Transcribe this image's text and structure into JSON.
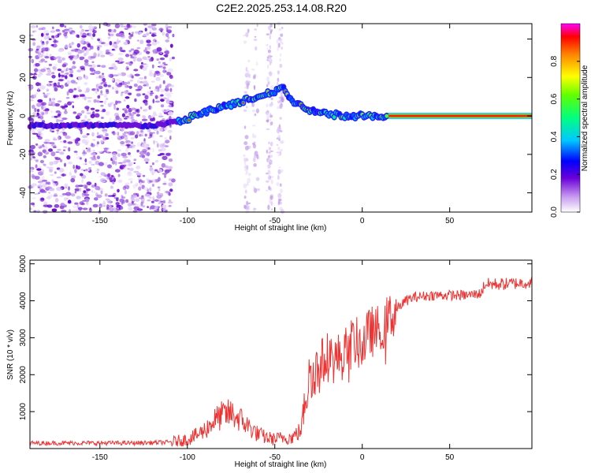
{
  "figure_title": "C2E2.2025.253.14.08.R20",
  "chart_data": [
    {
      "type": "heatmap",
      "name": "spectrogram",
      "title": "C2E2.2025.253.14.08.R20",
      "xlabel": "Height of straight line (km)",
      "ylabel": "Frequency (Hz)",
      "xlim": [
        -190,
        97
      ],
      "ylim": [
        -50,
        48
      ],
      "xticks": [
        -150,
        -100,
        -50,
        0,
        50
      ],
      "yticks": [
        -40,
        -20,
        0,
        20,
        40
      ],
      "colorbar": {
        "label": "Normalized spectral amplitude",
        "range": [
          0,
          1
        ],
        "ticks": [
          "0.0",
          "0.2",
          "0.4",
          "0.6",
          "0.8"
        ]
      },
      "ridge": {
        "x": [
          -190,
          -150,
          -120,
          -105,
          -90,
          -75,
          -60,
          -50,
          -45,
          -40,
          -30,
          -20,
          -10,
          0,
          15,
          97
        ],
        "y": [
          -5,
          -5,
          -5,
          -3,
          2,
          6,
          10,
          13,
          15,
          8,
          3,
          1,
          0,
          0,
          0,
          0
        ]
      }
    },
    {
      "type": "line",
      "name": "snr",
      "xlabel": "Height of straight line (km)",
      "ylabel": "SNR (10 * v/v)",
      "xlim": [
        -190,
        97
      ],
      "ylim": [
        0,
        5100
      ],
      "xticks": [
        -150,
        -100,
        -50,
        0,
        50
      ],
      "yticks": [
        1000,
        2000,
        3000,
        4000,
        5000
      ],
      "color": "#ee3333",
      "x": [
        -190,
        -160,
        -130,
        -110,
        -100,
        -95,
        -90,
        -85,
        -80,
        -75,
        -70,
        -65,
        -60,
        -55,
        -50,
        -45,
        -40,
        -35,
        -32,
        -30,
        -25,
        -20,
        -15,
        -10,
        -5,
        0,
        5,
        8,
        10,
        12,
        15,
        20,
        25,
        30,
        40,
        50,
        60,
        68,
        70,
        75,
        80,
        90,
        97
      ],
      "y": [
        150,
        150,
        150,
        170,
        250,
        350,
        500,
        750,
        900,
        950,
        800,
        600,
        400,
        300,
        250,
        300,
        300,
        500,
        1500,
        2000,
        2200,
        2500,
        2400,
        2600,
        2900,
        2800,
        3200,
        3100,
        3400,
        3300,
        3500,
        3800,
        4000,
        4100,
        4150,
        4150,
        4150,
        4200,
        4450,
        4450,
        4450,
        4480,
        4500
      ]
    }
  ]
}
